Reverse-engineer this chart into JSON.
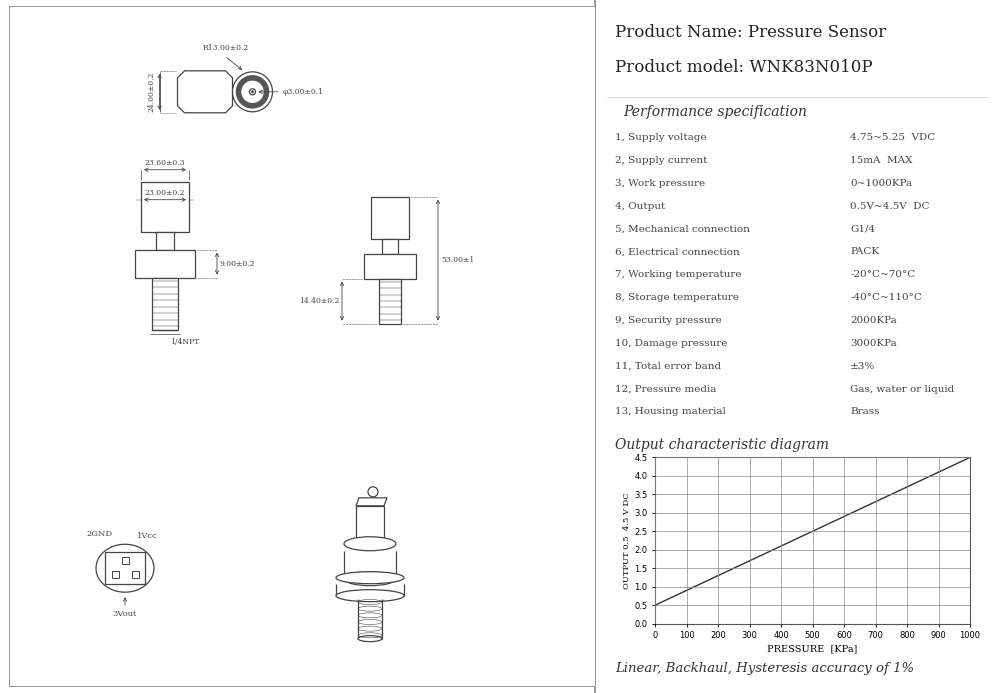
{
  "product_name": "Product Name: Pressure Sensor",
  "product_model": "Product model: WNK83N010P",
  "perf_title": "Performance specification",
  "specs": [
    [
      "1, Supply voltage",
      "4.75~5.25  VDC"
    ],
    [
      "2, Supply current",
      "15mA  MAX"
    ],
    [
      "3, Work pressure",
      "0~1000KPa"
    ],
    [
      "4, Output",
      "0.5V~4.5V  DC"
    ],
    [
      "5, Mechanical connection",
      "G1/4"
    ],
    [
      "6, Electrical connection",
      "PACK"
    ],
    [
      "7, Working temperature",
      "-20°C~70°C"
    ],
    [
      "8, Storage temperature",
      "-40°C~110°C"
    ],
    [
      "9, Security pressure",
      "2000KPa"
    ],
    [
      "10, Damage pressure",
      "3000KPa"
    ],
    [
      "11, Total error band",
      "±3%"
    ],
    [
      "12, Pressure media",
      "Gas, water or liquid"
    ],
    [
      "13, Housing material",
      "Brass"
    ]
  ],
  "chart_title": "Output characteristic diagram",
  "xlabel": "PRESSURE  [KPa]",
  "x_data": [
    0,
    1000
  ],
  "y_data": [
    0.5,
    4.5
  ],
  "xlim": [
    0,
    1000
  ],
  "ylim": [
    0,
    4.5
  ],
  "xticks": [
    0,
    100,
    200,
    300,
    400,
    500,
    600,
    700,
    800,
    900,
    1000
  ],
  "yticks": [
    0,
    0.5,
    1.0,
    1.5,
    2.0,
    2.5,
    3.0,
    3.5,
    4.0,
    4.5
  ],
  "footer": "Linear, Backhaul, Hysteresis accuracy of 1%",
  "bg_color": "#ffffff",
  "line_color": "#555555",
  "drawing_color": "#444444"
}
